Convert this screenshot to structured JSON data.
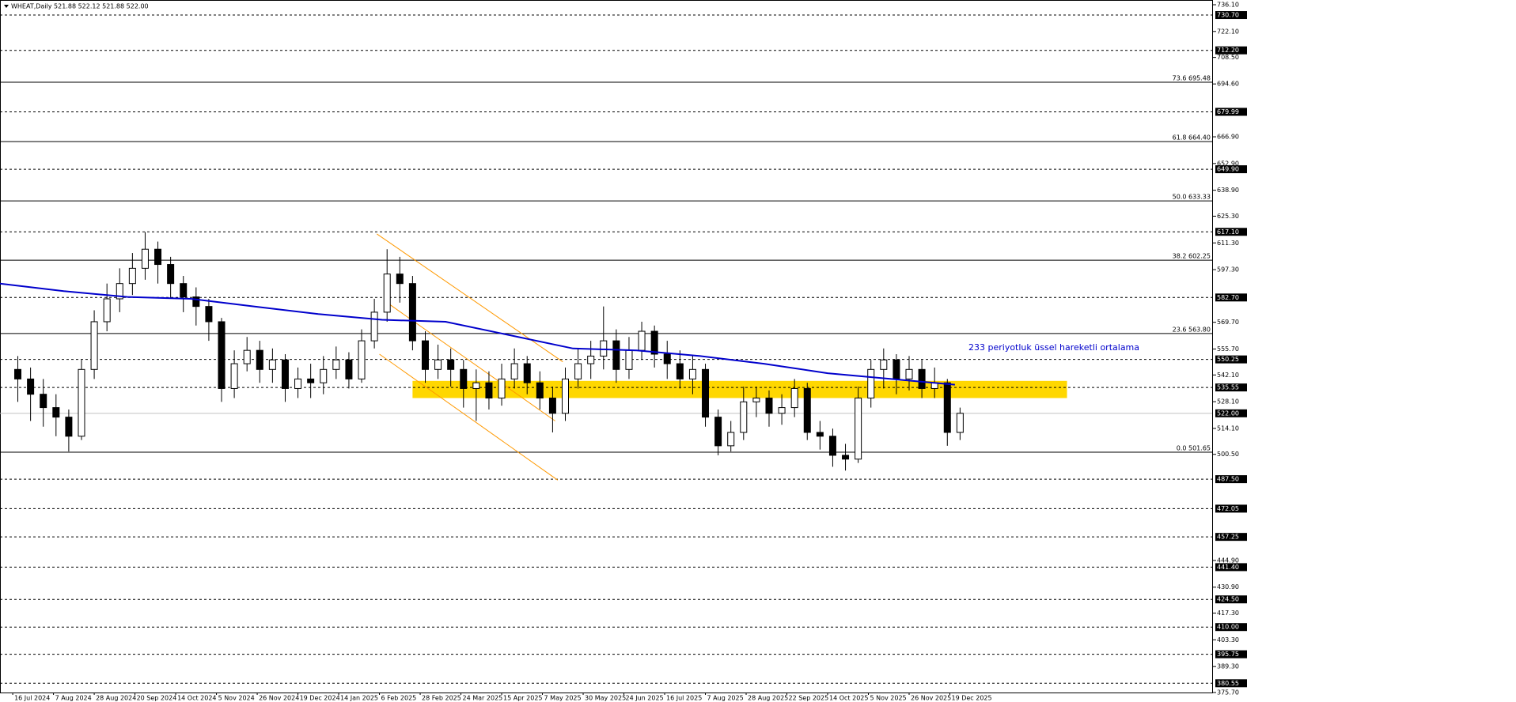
{
  "chart_data": {
    "type": "candlestick",
    "title": "WHEAT,Daily  521.88 522.12 521.88 522.00",
    "annotation": "233 periyotluk üssel hareketli ortalama",
    "up_color": "#ffffff",
    "down_color": "#000000",
    "ema_color": "#0000cc",
    "trend_color": "#ff9900",
    "zone_color": "#ffd700",
    "xlim": [
      -5,
      471
    ],
    "ylim": [
      375.7,
      736.1
    ],
    "xticks": [
      {
        "value": 0,
        "label": "16 Jul 2024"
      },
      {
        "value": 16,
        "label": "7 Aug 2024"
      },
      {
        "value": 32,
        "label": "28 Aug 2024"
      },
      {
        "value": 48,
        "label": "20 Sep 2024"
      },
      {
        "value": 64,
        "label": "14 Oct 2024"
      },
      {
        "value": 80,
        "label": "5 Nov 2024"
      },
      {
        "value": 96,
        "label": "26 Nov 2024"
      },
      {
        "value": 112,
        "label": "19 Dec 2024"
      },
      {
        "value": 128,
        "label": "14 Jan 2025"
      },
      {
        "value": 144,
        "label": "6 Feb 2025"
      },
      {
        "value": 160,
        "label": "28 Feb 2025"
      },
      {
        "value": 176,
        "label": "24 Mar 2025"
      },
      {
        "value": 192,
        "label": "15 Apr 2025"
      },
      {
        "value": 208,
        "label": "7 May 2025"
      },
      {
        "value": 224,
        "label": "30 May 2025"
      },
      {
        "value": 240,
        "label": "24 Jun 2025"
      },
      {
        "value": 256,
        "label": "16 Jul 2025"
      },
      {
        "value": 272,
        "label": "7 Aug 2025"
      },
      {
        "value": 288,
        "label": "28 Aug 2025"
      },
      {
        "value": 304,
        "label": "22 Sep 2025"
      },
      {
        "value": 320,
        "label": "14 Oct 2025"
      },
      {
        "value": 336,
        "label": "5 Nov 2025"
      },
      {
        "value": 352,
        "label": "26 Nov 2025"
      },
      {
        "value": 368,
        "label": "19 Dec 2025"
      }
    ],
    "yticks": [
      {
        "value": 736.1,
        "label": "736.10"
      },
      {
        "value": 722.1,
        "label": "722.10"
      },
      {
        "value": 708.5,
        "label": "708.50"
      },
      {
        "value": 694.6,
        "label": "694.60"
      },
      {
        "value": 666.9,
        "label": "666.90"
      },
      {
        "value": 652.9,
        "label": "652.90"
      },
      {
        "value": 638.9,
        "label": "638.90"
      },
      {
        "value": 625.3,
        "label": "625.30"
      },
      {
        "value": 611.3,
        "label": "611.30"
      },
      {
        "value": 597.3,
        "label": "597.30"
      },
      {
        "value": 569.7,
        "label": "569.70"
      },
      {
        "value": 555.7,
        "label": "555.70"
      },
      {
        "value": 542.1,
        "label": "542.10"
      },
      {
        "value": 528.1,
        "label": "528.10"
      },
      {
        "value": 514.1,
        "label": "514.10"
      },
      {
        "value": 500.5,
        "label": "500.50"
      },
      {
        "value": 444.9,
        "label": "444.90"
      },
      {
        "value": 430.9,
        "label": "430.90"
      },
      {
        "value": 417.3,
        "label": "417.30"
      },
      {
        "value": 403.3,
        "label": "403.30"
      },
      {
        "value": 389.3,
        "label": "389.30"
      },
      {
        "value": 375.7,
        "label": "375.70"
      }
    ],
    "levels": [
      {
        "value": 730.7,
        "label": "730.70"
      },
      {
        "value": 712.2,
        "label": "712.20"
      },
      {
        "value": 679.99,
        "label": "679.99"
      },
      {
        "value": 649.9,
        "label": "649.90"
      },
      {
        "value": 617.1,
        "label": "617.10"
      },
      {
        "value": 582.7,
        "label": "582.70"
      },
      {
        "value": 550.25,
        "label": "550.25"
      },
      {
        "value": 535.55,
        "label": "535.55"
      },
      {
        "value": 487.5,
        "label": "487.50"
      },
      {
        "value": 472.05,
        "label": "472.05"
      },
      {
        "value": 457.25,
        "label": "457.25"
      },
      {
        "value": 441.4,
        "label": "441.40"
      },
      {
        "value": 424.5,
        "label": "424.50"
      },
      {
        "value": 410,
        "label": "410.00"
      },
      {
        "value": 395.75,
        "label": "395.75"
      },
      {
        "value": 380.55,
        "label": "380.55"
      }
    ],
    "last_price": {
      "value": 522,
      "label": "522.00"
    },
    "fib_levels": [
      {
        "value": 695.48,
        "label": "73.6 695.48"
      },
      {
        "value": 664.4,
        "label": "61.8 664.40"
      },
      {
        "value": 633.33,
        "label": "50.0 633.33"
      },
      {
        "value": 602.25,
        "label": "38.2 602.25"
      },
      {
        "value": 563.8,
        "label": "23.6 563.80"
      },
      {
        "value": 501.65,
        "label": "0.0 501.65"
      }
    ],
    "zone": {
      "x": [
        157,
        414
      ],
      "y": [
        530,
        539
      ]
    },
    "trendlines": [
      {
        "x": [
          143,
          216
        ],
        "values": [
          616,
          549
        ]
      },
      {
        "x": [
          147,
          213
        ],
        "values": [
          580,
          518
        ]
      },
      {
        "x": [
          144,
          214
        ],
        "values": [
          553,
          487
        ]
      }
    ],
    "ema": {
      "x": [
        -5,
        20,
        45,
        70,
        95,
        120,
        145,
        170,
        195,
        220,
        245,
        270,
        295,
        320,
        345,
        370
      ],
      "values": [
        590,
        586,
        583,
        582,
        578,
        574,
        571,
        570,
        563,
        556,
        555,
        552,
        548,
        543,
        540,
        537
      ]
    },
    "x": [
      2,
      7,
      12,
      17,
      22,
      27,
      32,
      37,
      42,
      47,
      52,
      57,
      62,
      67,
      72,
      77,
      82,
      87,
      92,
      97,
      102,
      107,
      112,
      117,
      122,
      127,
      132,
      137,
      142,
      147,
      152,
      157,
      162,
      167,
      172,
      177,
      182,
      187,
      192,
      197,
      202,
      207,
      212,
      217,
      222,
      227,
      232,
      237,
      242,
      247,
      252,
      257,
      262,
      267,
      272,
      277,
      282,
      287,
      292,
      297,
      302,
      307,
      312,
      317,
      322,
      327,
      332,
      337,
      342,
      347,
      352,
      357,
      362,
      367,
      372
    ],
    "open": [
      545,
      540,
      532,
      525,
      520,
      510,
      545,
      570,
      582,
      590,
      598,
      608,
      600,
      590,
      583,
      578,
      570,
      535,
      548,
      555,
      545,
      550,
      535,
      540,
      538,
      545,
      550,
      540,
      560,
      575,
      595,
      590,
      560,
      545,
      550,
      545,
      535,
      538,
      530,
      540,
      548,
      538,
      530,
      522,
      540,
      548,
      552,
      560,
      545,
      555,
      565,
      553,
      548,
      540,
      545,
      520,
      505,
      512,
      528,
      530,
      522,
      525,
      535,
      512,
      510,
      500,
      498,
      530,
      545,
      550,
      540,
      545,
      535,
      538,
      512
    ],
    "high": [
      552,
      546,
      540,
      532,
      524,
      550,
      576,
      590,
      598,
      606,
      617,
      612,
      604,
      594,
      588,
      582,
      572,
      555,
      562,
      560,
      556,
      553,
      546,
      548,
      552,
      557,
      554,
      566,
      582,
      608,
      604,
      594,
      565,
      558,
      556,
      550,
      545,
      544,
      548,
      556,
      552,
      544,
      536,
      546,
      556,
      560,
      578,
      566,
      562,
      570,
      568,
      560,
      555,
      552,
      548,
      524,
      518,
      536,
      536,
      534,
      532,
      540,
      538,
      518,
      514,
      506,
      536,
      550,
      556,
      553,
      552,
      550,
      546,
      540,
      525
    ],
    "low": [
      528,
      518,
      515,
      510,
      502,
      508,
      540,
      565,
      575,
      584,
      592,
      590,
      582,
      575,
      568,
      560,
      528,
      530,
      544,
      538,
      538,
      528,
      530,
      530,
      532,
      540,
      535,
      538,
      556,
      570,
      580,
      555,
      538,
      540,
      536,
      525,
      518,
      524,
      526,
      535,
      532,
      524,
      512,
      518,
      535,
      540,
      545,
      538,
      540,
      550,
      546,
      540,
      535,
      532,
      515,
      500,
      502,
      508,
      520,
      515,
      516,
      520,
      508,
      503,
      494,
      492,
      496,
      525,
      535,
      532,
      534,
      530,
      530,
      505,
      508
    ],
    "close": [
      540,
      532,
      525,
      520,
      510,
      545,
      570,
      582,
      590,
      598,
      608,
      600,
      590,
      583,
      578,
      570,
      535,
      548,
      555,
      545,
      550,
      535,
      540,
      538,
      545,
      550,
      540,
      560,
      575,
      595,
      590,
      560,
      545,
      550,
      545,
      535,
      538,
      530,
      540,
      548,
      538,
      530,
      522,
      540,
      548,
      552,
      560,
      545,
      555,
      565,
      553,
      548,
      540,
      545,
      520,
      505,
      512,
      528,
      530,
      522,
      525,
      535,
      512,
      510,
      500,
      498,
      530,
      545,
      550,
      540,
      545,
      535,
      538,
      512,
      522
    ]
  }
}
